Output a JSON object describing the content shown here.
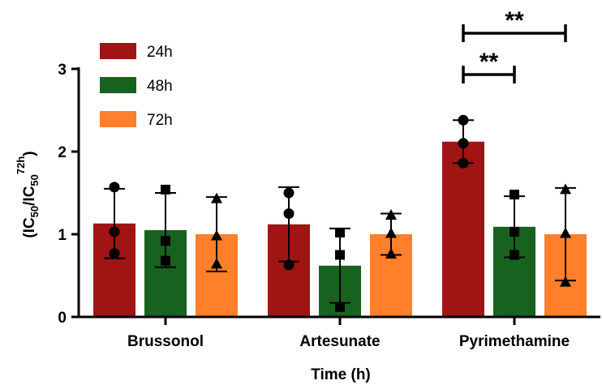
{
  "chart_data": {
    "type": "bar",
    "title": "",
    "xlabel": "Time (h)",
    "ylabel": {
      "prefix": "(IC",
      "sub1": "50",
      "mid": "/IC",
      "sub2": "50",
      "sup": "72h",
      "suffix": ")"
    },
    "ylim": [
      0,
      3
    ],
    "yticks": [
      "0",
      "1",
      "2",
      "3"
    ],
    "categories": [
      "Brussonol",
      "Artesunate",
      "Pyrimethamine"
    ],
    "series": [
      {
        "name": "24h",
        "color": "#a01414",
        "marker": "circle",
        "values": [
          1.13,
          1.12,
          2.12
        ],
        "errors": [
          0.42,
          0.45,
          0.26
        ],
        "points": [
          [
            1.57,
            1.03,
            0.77
          ],
          [
            1.5,
            1.25,
            0.63
          ],
          [
            2.38,
            2.1,
            1.86
          ]
        ]
      },
      {
        "name": "48h",
        "color": "#18621f",
        "marker": "square",
        "values": [
          1.05,
          0.62,
          1.09
        ],
        "errors": [
          0.45,
          0.45,
          0.37
        ],
        "points": [
          [
            1.54,
            0.92,
            0.68
          ],
          [
            1.02,
            0.75,
            0.12
          ],
          [
            1.48,
            1.03,
            0.75
          ]
        ]
      },
      {
        "name": "72h",
        "color": "#ff7f2a",
        "marker": "triangle",
        "values": [
          1.0,
          1.0,
          1.0
        ],
        "errors": [
          0.45,
          0.25,
          0.56
        ],
        "points": [
          [
            1.43,
            0.98,
            0.64
          ],
          [
            1.23,
            1.01,
            0.76
          ],
          [
            1.54,
            1.01,
            0.42
          ]
        ]
      }
    ],
    "significance": [
      {
        "category": "Pyrimethamine",
        "from": "24h",
        "to": "48h",
        "label": "**"
      },
      {
        "category": "Pyrimethamine",
        "from": "24h",
        "to": "72h",
        "label": "**"
      }
    ],
    "legend": {
      "placement": "top-left",
      "entries": [
        "24h",
        "48h",
        "72h"
      ]
    }
  }
}
